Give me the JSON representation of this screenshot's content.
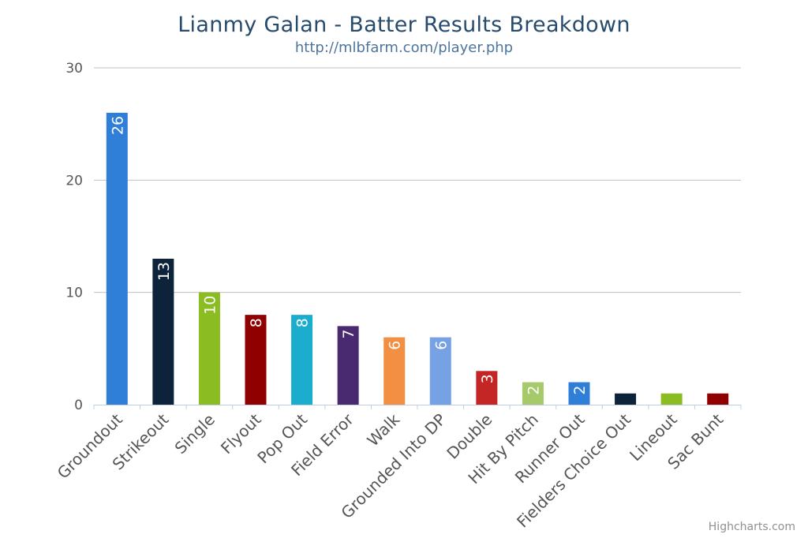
{
  "chart_data": {
    "type": "bar",
    "title": "Lianmy Galan - Batter Results Breakdown",
    "subtitle": "http://mlbfarm.com/player.php",
    "xlabel": "",
    "ylabel": "",
    "ylim": [
      0,
      30
    ],
    "yticks": [
      0,
      10,
      20,
      30
    ],
    "grid": true,
    "categories": [
      "Groundout",
      "Strikeout",
      "Single",
      "Flyout",
      "Pop Out",
      "Field Error",
      "Walk",
      "Grounded Into DP",
      "Double",
      "Hit By Pitch",
      "Runner Out",
      "Fielders Choice Out",
      "Lineout",
      "Sac Bunt"
    ],
    "values": [
      26,
      13,
      10,
      8,
      8,
      7,
      6,
      6,
      3,
      2,
      2,
      1,
      1,
      1
    ],
    "data_labels": [
      "26",
      "13",
      "10",
      "8",
      "8",
      "7",
      "6",
      "6",
      "3",
      "2",
      "2",
      "",
      "",
      ""
    ],
    "colors": [
      "#2f7ed8",
      "#0d233a",
      "#8bbc21",
      "#910000",
      "#1aadce",
      "#492970",
      "#f28f43",
      "#77a1e5",
      "#c42525",
      "#a6c96a",
      "#2f7ed8",
      "#0d233a",
      "#8bbc21",
      "#910000"
    ],
    "credits": "Highcharts.com"
  }
}
